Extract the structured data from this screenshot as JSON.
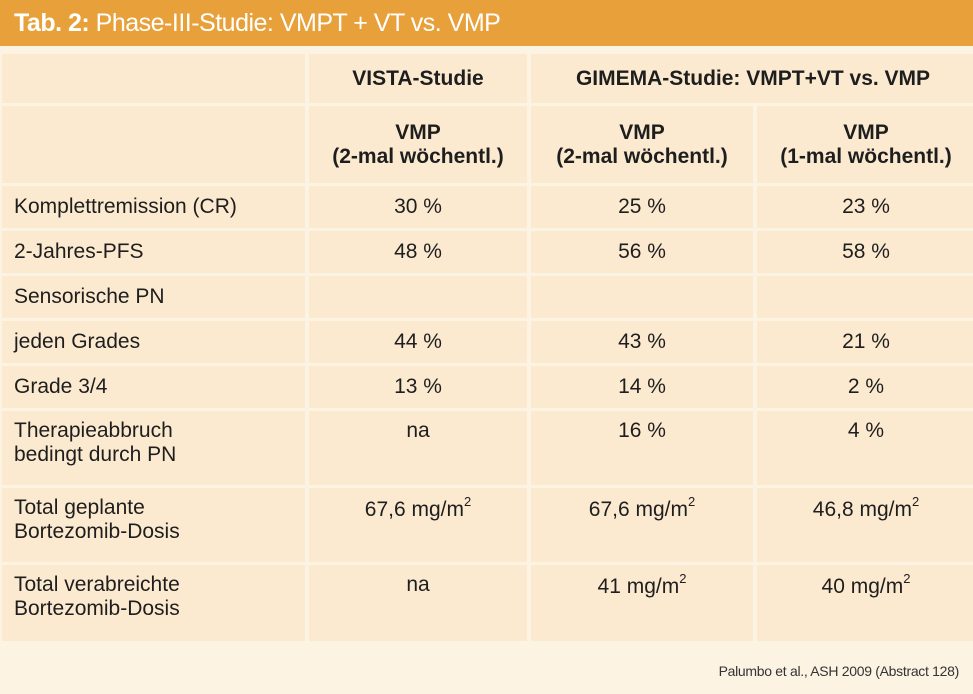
{
  "title": {
    "label": "Tab. 2:",
    "text": "Phase-III-Studie: VMPT + VT vs. VMP"
  },
  "header": {
    "group1": "VISTA-Studie",
    "group2": "GIMEMA-Studie: VMPT+VT vs. VMP",
    "sub": [
      {
        "line1": "VMP",
        "line2": "(2-mal wöchentl.)"
      },
      {
        "line1": "VMP",
        "line2": "(2-mal wöchentl.)"
      },
      {
        "line1": "VMP",
        "line2": "(1-mal wöchentl.)"
      }
    ]
  },
  "rows": [
    {
      "label1": "Komplettremission (CR)",
      "label2": "",
      "values": [
        "30 %",
        "25 %",
        "23 %"
      ]
    },
    {
      "label1": "2-Jahres-PFS",
      "label2": "",
      "values": [
        "48 %",
        "56 %",
        "58 %"
      ]
    },
    {
      "label1": "Sensorische PN",
      "label2": "",
      "values": [
        "",
        "",
        ""
      ]
    },
    {
      "label1": "jeden Grades",
      "label2": "",
      "values": [
        "44 %",
        "43 %",
        "21 %"
      ]
    },
    {
      "label1": "Grade 3/4",
      "label2": "",
      "values": [
        "13 %",
        "14 %",
        "2 %"
      ]
    },
    {
      "label1": "Therapieabbruch",
      "label2": "bedingt durch PN",
      "values": [
        "na",
        "16 %",
        "4 %"
      ]
    },
    {
      "label1": "Total geplante",
      "label2": "Bortezomib-Dosis",
      "values": [
        "67,6 mg/m",
        "67,6 mg/m",
        "46,8 mg/m"
      ],
      "sup": "2"
    },
    {
      "label1": "Total verabreichte",
      "label2": "Bortezomib-Dosis",
      "values": [
        "na",
        "41 mg/m",
        "40 mg/m"
      ],
      "sup": "2"
    }
  ],
  "footer": "Palumbo et al., ASH 2009 (Abstract 128)"
}
